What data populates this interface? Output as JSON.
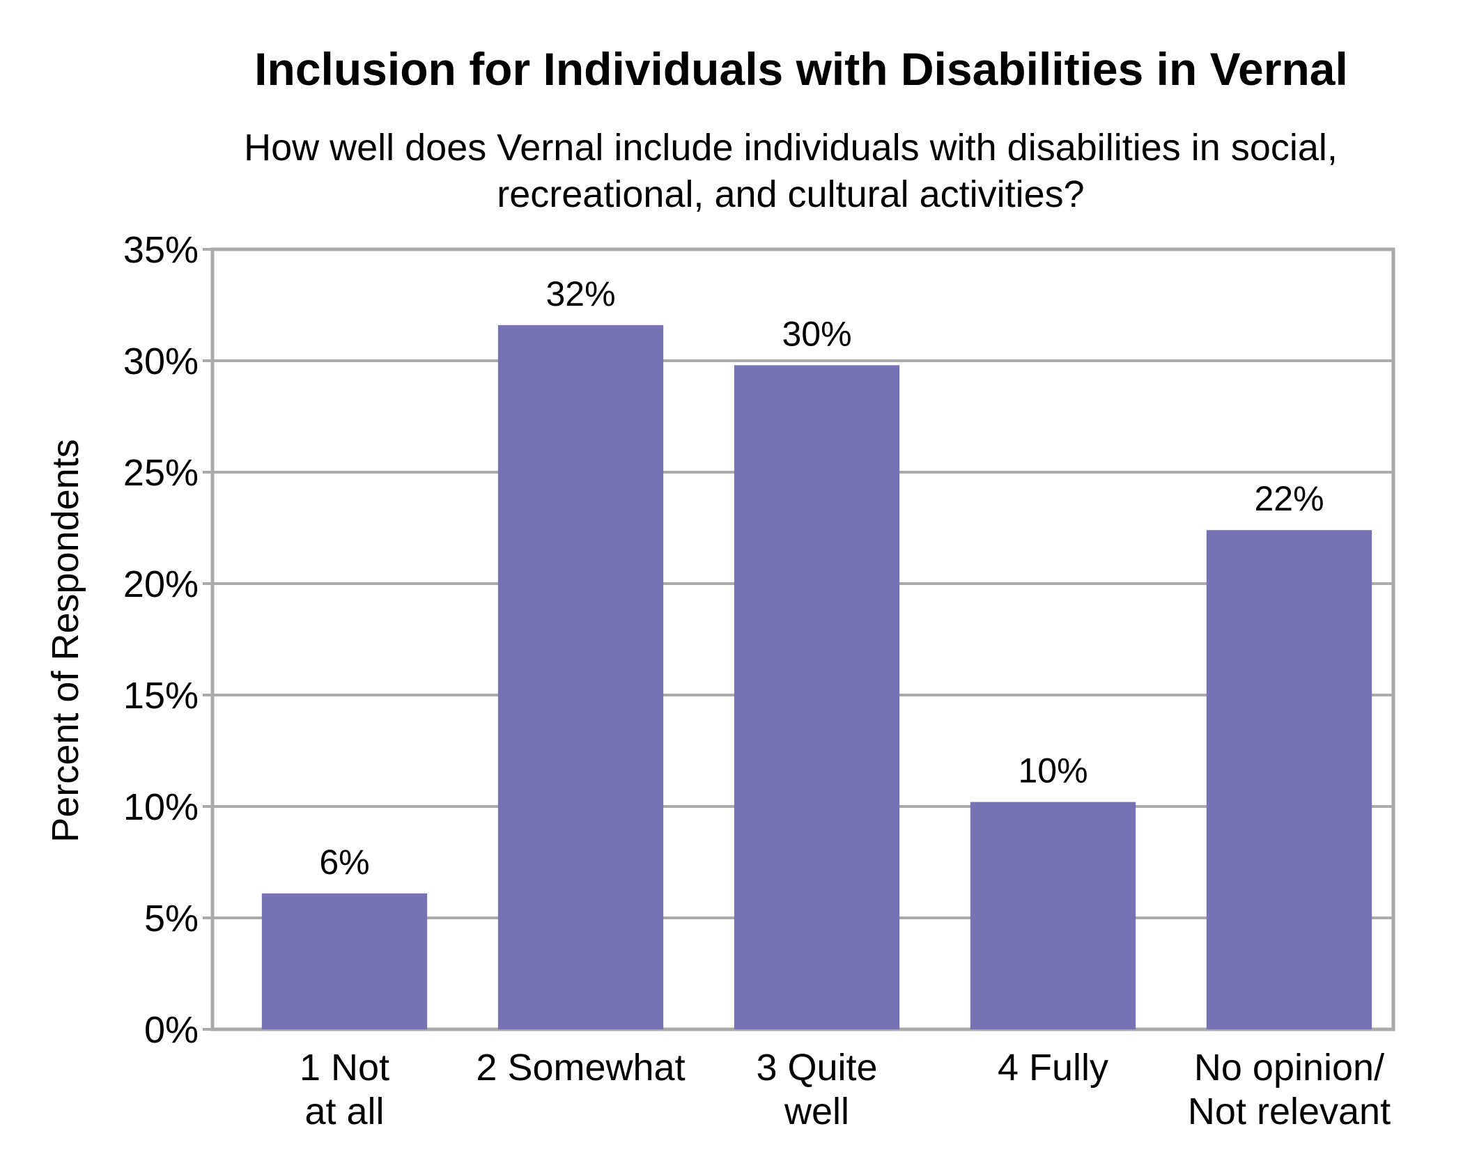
{
  "chart_data": {
    "type": "bar",
    "title": "Inclusion for Individuals with Disabilities in Vernal",
    "subtitle_lines": [
      "How well does Vernal include individuals with disabilities in social,",
      "recreational, and cultural activities?"
    ],
    "ylabel": "Percent of Respondents",
    "xlabel": "",
    "categories": [
      [
        "1 Not",
        "at all"
      ],
      [
        "2 Somewhat"
      ],
      [
        "3 Quite",
        "well"
      ],
      [
        "4 Fully"
      ],
      [
        "No opinion/",
        "Not relevant"
      ]
    ],
    "values": [
      6.1,
      31.6,
      29.8,
      10.2,
      22.4
    ],
    "value_labels": [
      "6%",
      "32%",
      "30%",
      "10%",
      "22%"
    ],
    "ylim": [
      0,
      35
    ],
    "yticks": [
      0,
      5,
      10,
      15,
      20,
      25,
      30,
      35
    ],
    "ytick_labels": [
      "0%",
      "5%",
      "10%",
      "15%",
      "20%",
      "25%",
      "30%",
      "35%"
    ],
    "grid": true,
    "legend": "none",
    "colors": {
      "bar": "#7672B4",
      "grid": "#AAAAAA",
      "frame": "#AAAAAA",
      "text": "#000000"
    }
  }
}
